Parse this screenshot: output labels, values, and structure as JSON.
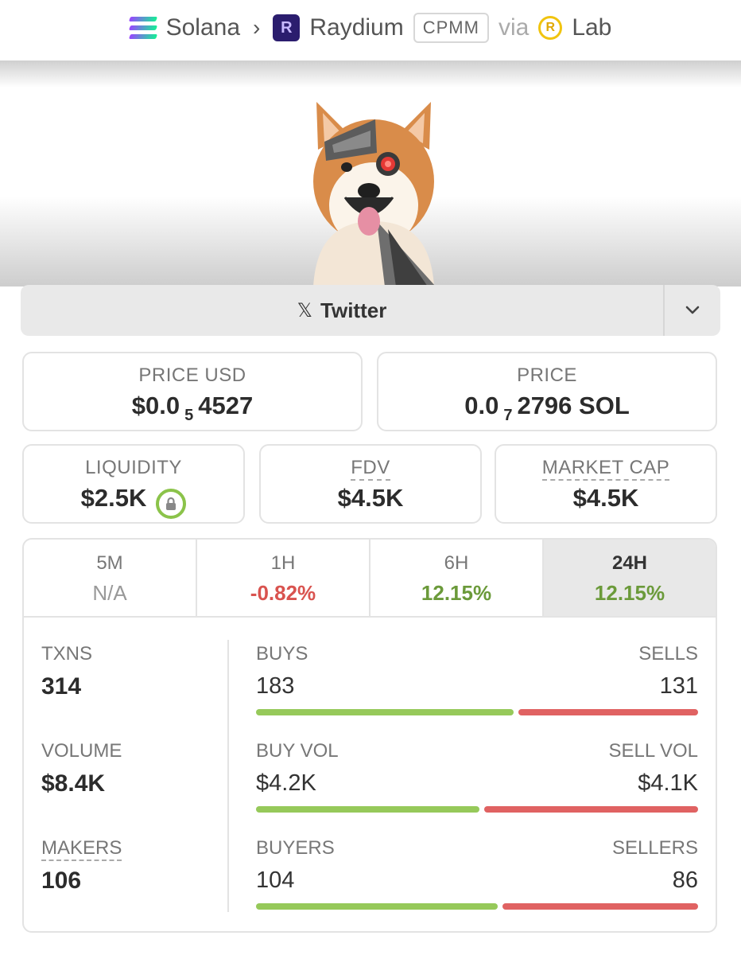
{
  "breadcrumb": {
    "chain": "Solana",
    "dex": "Raydium",
    "pool_type": "CPMM",
    "via": "via",
    "source": "Lab"
  },
  "socials": {
    "twitter_label": "Twitter",
    "x_glyph": "𝕏"
  },
  "price_usd": {
    "label": "PRICE USD",
    "prefix": "$0.0",
    "zeros": "5",
    "digits": "4527"
  },
  "price_native": {
    "label": "PRICE",
    "prefix": "0.0",
    "zeros": "7",
    "digits": "2796 SOL"
  },
  "liquidity": {
    "label": "LIQUIDITY",
    "value": "$2.5K"
  },
  "fdv": {
    "label": "FDV",
    "value": "$4.5K"
  },
  "market_cap": {
    "label": "MARKET CAP",
    "value": "$4.5K"
  },
  "timeframes": [
    {
      "label": "5M",
      "value": "N/A"
    },
    {
      "label": "1H",
      "value": "-0.82%"
    },
    {
      "label": "6H",
      "value": "12.15%"
    },
    {
      "label": "24H",
      "value": "12.15%"
    }
  ],
  "txns": {
    "label": "TXNS",
    "value": "314"
  },
  "volume": {
    "label": "VOLUME",
    "value": "$8.4K"
  },
  "makers": {
    "label": "MAKERS",
    "value": "106"
  },
  "buys": {
    "label": "BUYS",
    "value": "183",
    "sell_label": "SELLS",
    "sell_value": "131"
  },
  "buy_vol": {
    "label": "BUY VOL",
    "value": "$4.2K",
    "sell_label": "SELL VOL",
    "sell_value": "$4.1K"
  },
  "buyers": {
    "label": "BUYERS",
    "value": "104",
    "sell_label": "SELLERS",
    "sell_value": "86"
  },
  "colors": {
    "positive": "#6b9a3a",
    "negative": "#d9534f",
    "buy_bar": "#96c95a",
    "sell_bar": "#e06262"
  },
  "icons": {
    "chain": "solana-icon",
    "dex": "raydium-icon",
    "source": "lab-icon",
    "lock": "lock-icon"
  }
}
